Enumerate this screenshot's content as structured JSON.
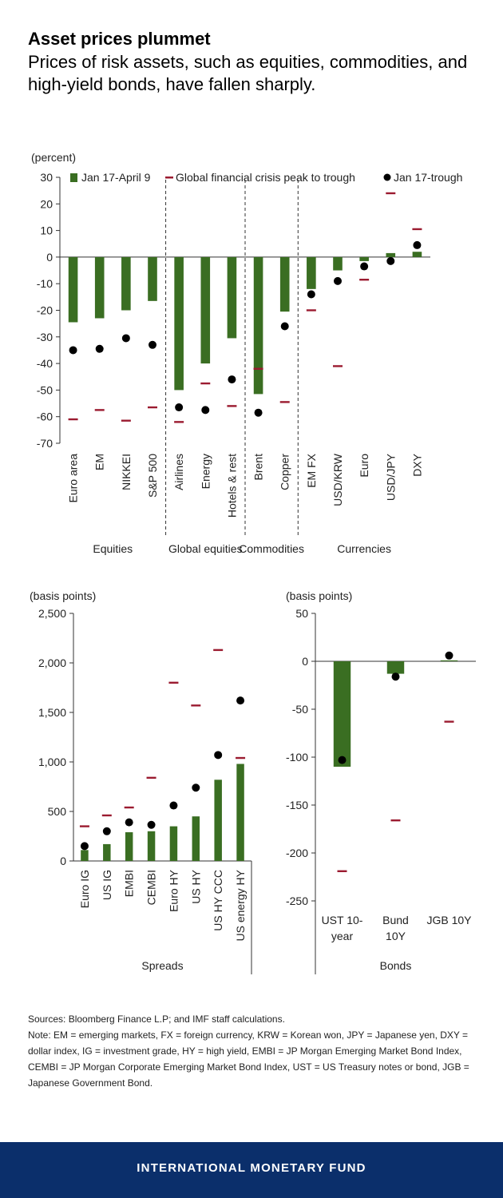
{
  "header": {
    "title": "Asset prices plummet",
    "subtitle": "Prices of risk assets, such as equities, commodities, and high-yield bonds, have fallen sharply."
  },
  "colors": {
    "bar": "#3a6e22",
    "gfc": "#9b1b30",
    "dot": "#000000",
    "footer_bg": "#0b2f6b"
  },
  "chart_data": [
    {
      "type": "bar",
      "unit_label": "(percent)",
      "ylim": [
        -70,
        30
      ],
      "yticks": [
        30,
        20,
        10,
        0,
        -10,
        -20,
        -30,
        -40,
        -50,
        -60,
        -70
      ],
      "legend": [
        "Jan 17-April 9",
        "Global financial crisis peak to trough",
        "Jan 17-trough"
      ],
      "categories": [
        "Euro area",
        "EM",
        "NIKKEI",
        "S&P 500",
        "Airlines",
        "Energy",
        "Hotels & rest",
        "Brent",
        "Copper",
        "EM FX",
        "USD/KRW",
        "Euro",
        "USD/JPY",
        "DXY"
      ],
      "groups": [
        {
          "label": "Equities",
          "count": 4
        },
        {
          "label": "Global equities",
          "count": 3
        },
        {
          "label": "Commodities",
          "count": 2
        },
        {
          "label": "Currencies",
          "count": 5
        }
      ],
      "series": [
        {
          "name": "Jan 17-April 9",
          "kind": "bar",
          "values": [
            -24.5,
            -23,
            -20,
            -16.5,
            -50,
            -40,
            -30.5,
            -51.5,
            -20.5,
            -12,
            -5,
            -1.5,
            1.5,
            2
          ]
        },
        {
          "name": "Global financial crisis peak to trough",
          "kind": "dash",
          "values": [
            -61,
            -57.5,
            -61.5,
            -56.5,
            -62,
            -47.5,
            -56,
            -42,
            -54.5,
            -20,
            -41,
            -8.5,
            24,
            10.5
          ]
        },
        {
          "name": "Jan 17-trough",
          "kind": "dot",
          "values": [
            -35,
            -34.5,
            -30.5,
            -33,
            -56.5,
            -57.5,
            -46,
            -58.5,
            -26,
            -14,
            -9,
            -3.5,
            -1.5,
            4.5
          ]
        }
      ]
    },
    {
      "type": "bar",
      "unit_label": "(basis points)",
      "ylim": [
        0,
        2500
      ],
      "yticks": [
        2500,
        2000,
        1500,
        1000,
        500,
        0
      ],
      "ytick_labels": [
        "2,500",
        "2,000",
        "1,500",
        "1,000",
        "500",
        "0"
      ],
      "categories": [
        "Euro IG",
        "US IG",
        "EMBI",
        "CEMBI",
        "Euro HY",
        "US HY",
        "US HY CCC",
        "US energy HY"
      ],
      "group_label": "Spreads",
      "series": [
        {
          "name": "Jan 17-April 9",
          "kind": "bar",
          "values": [
            110,
            170,
            290,
            300,
            350,
            450,
            820,
            980
          ]
        },
        {
          "name": "Global financial crisis peak to trough",
          "kind": "dash",
          "values": [
            350,
            460,
            540,
            840,
            1800,
            1570,
            2130,
            1040
          ]
        },
        {
          "name": "Jan 17-trough",
          "kind": "dot",
          "values": [
            150,
            300,
            390,
            365,
            560,
            740,
            1070,
            1620
          ]
        }
      ]
    },
    {
      "type": "bar",
      "unit_label": "(basis points)",
      "ylim": [
        -250,
        50
      ],
      "yticks": [
        50,
        0,
        -50,
        -100,
        -150,
        -200,
        -250
      ],
      "categories": [
        "UST 10-year",
        "Bund 10Y",
        "JGB 10Y"
      ],
      "category_lines": [
        [
          "UST 10-",
          "year"
        ],
        [
          "Bund",
          "10Y"
        ],
        [
          "JGB 10Y"
        ]
      ],
      "group_label": "Bonds",
      "series": [
        {
          "name": "Jan 17-April 9",
          "kind": "bar",
          "values": [
            -110,
            -13,
            1
          ]
        },
        {
          "name": "Global financial crisis peak to trough",
          "kind": "dash",
          "values": [
            -219,
            -166,
            -63
          ]
        },
        {
          "name": "Jan 17-trough",
          "kind": "dot",
          "values": [
            -103,
            -16,
            6
          ]
        }
      ]
    }
  ],
  "notes": {
    "sources": "Sources: Bloomberg Finance L.P; and IMF staff calculations.",
    "note": "Note: EM = emerging markets, FX = foreign currency, KRW = Korean won, JPY = Japanese yen, DXY = dollar index, IG = investment grade, HY = high yield, EMBI = JP Morgan Emerging Market Bond Index, CEMBI = JP Morgan Corporate Emerging Market Bond Index, UST = US Treasury notes or bond, JGB = Japanese Government Bond."
  },
  "footer": {
    "org": "INTERNATIONAL MONETARY FUND"
  }
}
